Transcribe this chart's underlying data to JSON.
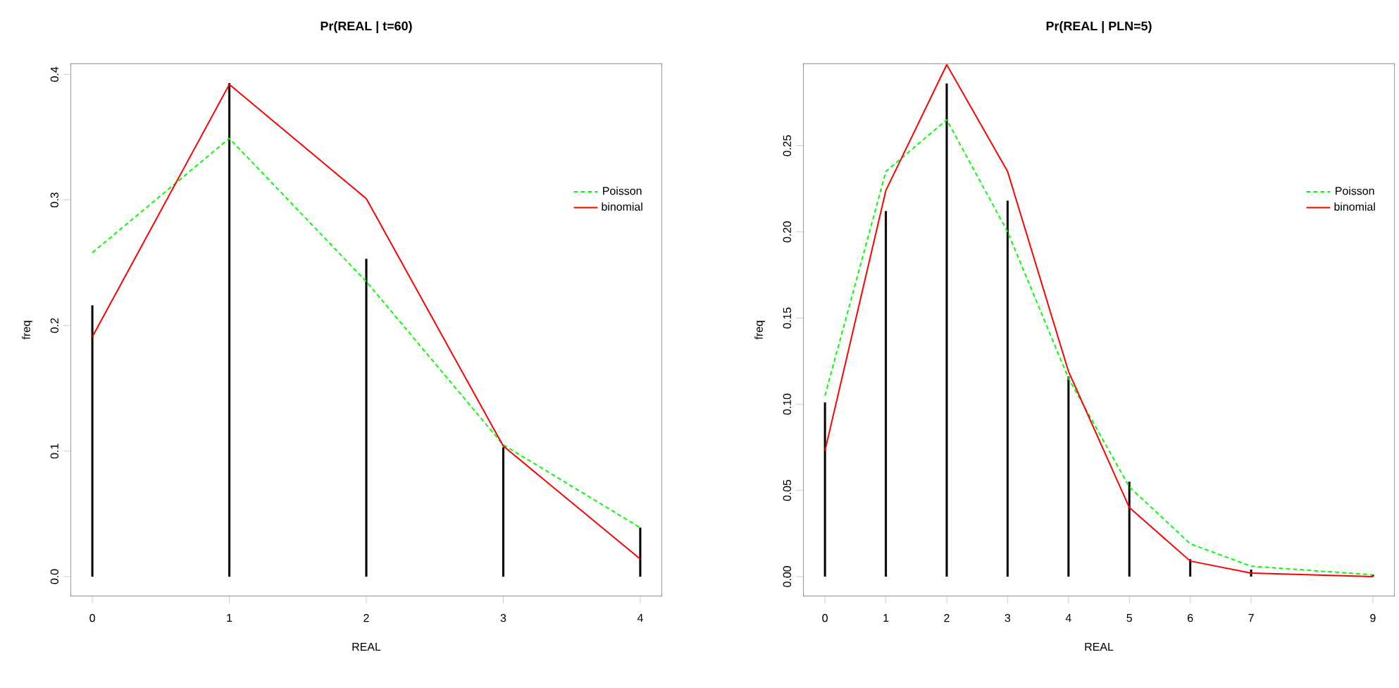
{
  "chart_data": [
    {
      "type": "line",
      "title": "Pr(REAL | t=60)",
      "xlabel": "REAL",
      "ylabel": "freq",
      "x": [
        0,
        1,
        2,
        3,
        4
      ],
      "xlim": [
        -0.16,
        4.16
      ],
      "xticks": [
        0,
        1,
        2,
        3,
        4
      ],
      "ylim": [
        -0.0157,
        0.4087
      ],
      "yticks": [
        {
          "value": 0,
          "label": "0.0"
        },
        0.1,
        0.2,
        0.3,
        0.4
      ],
      "legend": "right",
      "series": [
        {
          "type": "bar",
          "color": "#000000",
          "values": [
            0.216,
            0.393,
            0.253,
            0.103,
            0.039
          ]
        },
        {
          "name": "Poisson",
          "color": "#00ff00",
          "line_style": "dashed",
          "values": [
            0.258,
            0.349,
            0.235,
            0.105,
            0.039
          ]
        },
        {
          "name": "binomial",
          "color": "#ff0000",
          "line_style": "solid",
          "values": [
            0.191,
            0.392,
            0.301,
            0.104,
            0.014
          ]
        }
      ]
    },
    {
      "type": "line",
      "title": "Pr(REAL | PLN=5)",
      "xlabel": "REAL",
      "ylabel": "freq",
      "x": [
        0,
        1,
        2,
        3,
        4,
        5,
        6,
        7,
        9
      ],
      "xlim": [
        -0.36,
        9.36
      ],
      "xticks": [
        0,
        1,
        2,
        3,
        4,
        5,
        6,
        7,
        9
      ],
      "ylim": [
        -0.0115,
        0.2977
      ],
      "yticks": [
        {
          "value": 0,
          "label": "0.00"
        },
        0.05,
        {
          "value": 0.1,
          "label": "0.10"
        },
        0.15,
        {
          "value": 0.2,
          "label": "0.20"
        },
        0.25
      ],
      "legend": "right",
      "series": [
        {
          "type": "bar",
          "color": "#000000",
          "values": [
            0.101,
            0.212,
            0.286,
            0.218,
            0.116,
            0.055,
            0.01,
            0.004,
            0.001
          ]
        },
        {
          "name": "Poisson",
          "color": "#00ff00",
          "line_style": "dashed",
          "values": [
            0.105,
            0.235,
            0.265,
            0.2,
            0.115,
            0.052,
            0.019,
            0.006,
            0.001
          ]
        },
        {
          "name": "binomial",
          "color": "#ff0000",
          "line_style": "solid",
          "values": [
            0.073,
            0.224,
            0.297,
            0.235,
            0.119,
            0.04,
            0.009,
            0.002,
            0.0
          ]
        }
      ]
    }
  ]
}
